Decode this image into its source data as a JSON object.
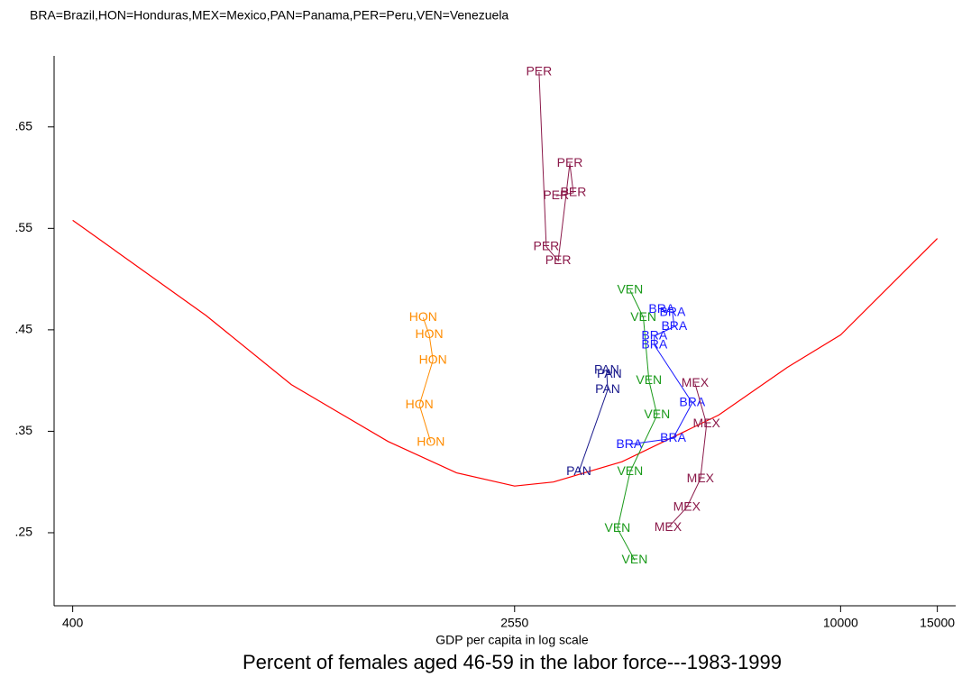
{
  "chart_data": {
    "type": "scatter",
    "note": "BRA=Brazil,HON=Honduras,MEX=Mexico,PAN=Panama,PER=Peru,VEN=Venezuela",
    "title": "Percent of females aged 46-59 in the labor force---1983-1999",
    "x_label": "GDP per capita in log scale",
    "x_log": true,
    "xlim": [
      370,
      16200
    ],
    "xticks": [
      400,
      2550,
      10000,
      15000
    ],
    "ylim": [
      0.178,
      0.72
    ],
    "yticks": [
      {
        "value": 0.25,
        "label": ".25"
      },
      {
        "value": 0.35,
        "label": ".35"
      },
      {
        "value": 0.45,
        "label": ".45"
      },
      {
        "value": 0.55,
        "label": ".55"
      },
      {
        "value": 0.65,
        "label": ".65"
      }
    ],
    "series": [
      {
        "name": "PER",
        "color": "#8b1a4a",
        "x": [
          2825,
          2912,
          3061,
          3214,
          3262,
          3034
        ],
        "values": [
          0.704,
          0.532,
          0.518,
          0.614,
          0.585,
          0.582
        ]
      },
      {
        "name": "HON",
        "color": "#ff8c00",
        "x": [
          1738,
          1783,
          1811,
          1711,
          1795
        ],
        "values": [
          0.462,
          0.445,
          0.42,
          0.376,
          0.339
        ]
      },
      {
        "name": "PAN",
        "color": "#1a1a8c",
        "x": [
          3337,
          3767,
          3750,
          3793
        ],
        "values": [
          0.31,
          0.391,
          0.41,
          0.406
        ]
      },
      {
        "name": "VEN",
        "color": "#1a9a1a",
        "x": [
          4138,
          4375,
          4478,
          4634,
          4138,
          3925,
          4218
        ],
        "values": [
          0.489,
          0.462,
          0.4,
          0.366,
          0.31,
          0.254,
          0.223
        ]
      },
      {
        "name": "BRA",
        "color": "#1a1aff",
        "x": [
          4722,
          4943,
          4980,
          4581,
          4581,
          5370,
          4955,
          4121
        ],
        "values": [
          0.47,
          0.467,
          0.453,
          0.444,
          0.435,
          0.378,
          0.343,
          0.337
        ]
      },
      {
        "name": "MEX",
        "color": "#8b1a4a",
        "x": [
          5433,
          5702,
          5556,
          5248,
          4851
        ],
        "values": [
          0.397,
          0.357,
          0.303,
          0.275,
          0.255
        ]
      }
    ],
    "fit": {
      "color": "#ff0000",
      "x": [
        400,
        700,
        1000,
        1500,
        2000,
        2550,
        3000,
        4000,
        6000,
        8000,
        10000,
        15000
      ],
      "values": [
        0.558,
        0.464,
        0.396,
        0.34,
        0.309,
        0.296,
        0.3,
        0.32,
        0.366,
        0.413,
        0.445,
        0.54
      ]
    }
  }
}
